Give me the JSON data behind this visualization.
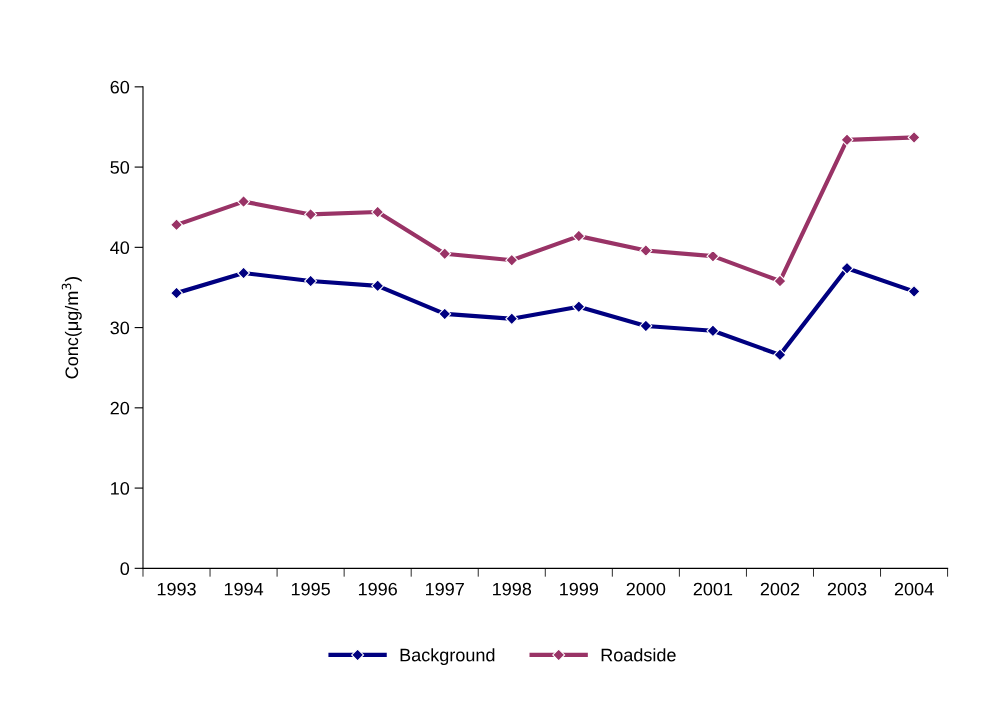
{
  "chart_data": {
    "type": "line",
    "ylabel": "Conc(μg/m$^{3}$)",
    "categories": [
      "1993",
      "1994",
      "1995",
      "1996",
      "1997",
      "1998",
      "1999",
      "2000",
      "2001",
      "2002",
      "2003",
      "2004"
    ],
    "series": [
      {
        "name": "Background",
        "color": "#000080",
        "values": [
          34.3,
          36.8,
          35.8,
          35.2,
          31.7,
          31.1,
          32.6,
          30.2,
          29.6,
          26.6,
          37.4,
          34.5
        ]
      },
      {
        "name": "Roadside",
        "color": "#993366",
        "values": [
          42.8,
          45.7,
          44.1,
          44.4,
          39.2,
          38.4,
          41.4,
          39.6,
          38.9,
          35.8,
          53.4,
          53.7
        ]
      }
    ],
    "ylim": [
      0,
      60
    ],
    "yticks": [
      0,
      10,
      20,
      30,
      40,
      50,
      60
    ],
    "grid": false,
    "legend": "bottom",
    "marker": "diamond",
    "line_style": "solid"
  }
}
